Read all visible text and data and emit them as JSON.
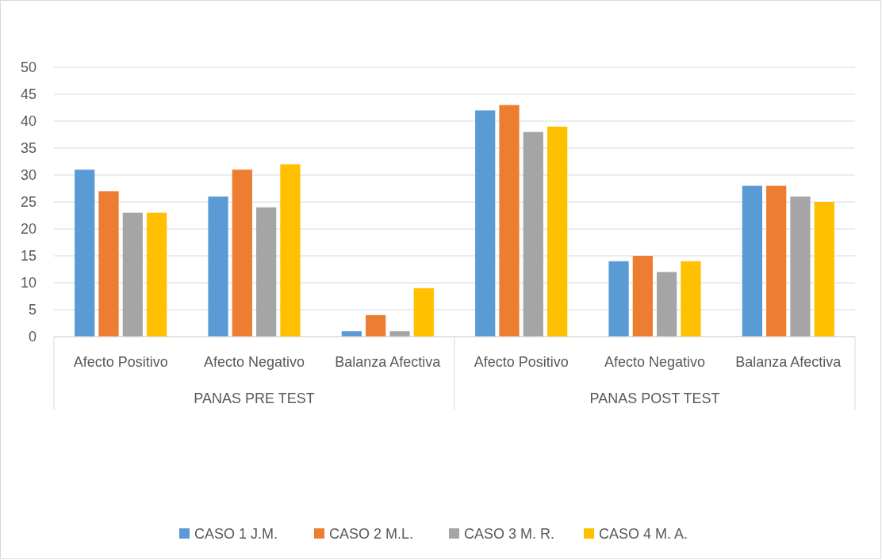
{
  "chart_data": {
    "type": "bar",
    "categories": [
      "Afecto Positivo",
      "Afecto Negativo",
      "Balanza Afectiva",
      "Afecto Positivo",
      "Afecto Negativo",
      "Balanza Afectiva"
    ],
    "series": [
      {
        "name": "CASO 1 J.M.",
        "color": "#5b9bd5",
        "values": [
          31,
          26,
          1,
          42,
          14,
          28
        ]
      },
      {
        "name": "CASO 2 M.L.",
        "color": "#ed7d31",
        "values": [
          27,
          31,
          4,
          43,
          15,
          28
        ]
      },
      {
        "name": "CASO 3 M. R.",
        "color": "#a5a5a5",
        "values": [
          23,
          24,
          1,
          38,
          12,
          26
        ]
      },
      {
        "name": "CASO 4 M. A.",
        "color": "#ffc000",
        "values": [
          23,
          32,
          9,
          39,
          14,
          25
        ]
      }
    ],
    "annotations": [
      "PANAS PRE TEST",
      "PANAS POST TEST"
    ],
    "ylim": [
      0,
      50
    ],
    "yticks": [
      0,
      5,
      10,
      15,
      20,
      25,
      30,
      35,
      40,
      45,
      50
    ],
    "grid": "y",
    "legend": "bottom"
  }
}
